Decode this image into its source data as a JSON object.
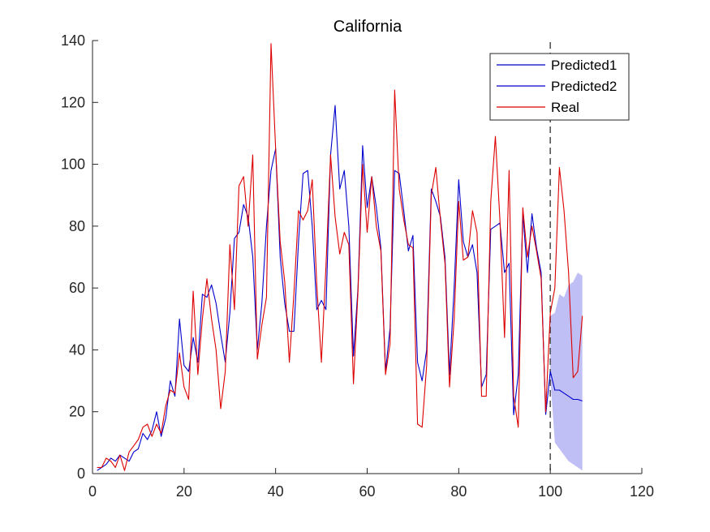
{
  "chart_data": {
    "type": "line",
    "title": "California",
    "xlabel": "",
    "ylabel": "",
    "xlim": [
      0,
      120
    ],
    "ylim": [
      0,
      140
    ],
    "xticks": [
      0,
      20,
      40,
      60,
      80,
      100,
      120
    ],
    "yticks": [
      0,
      20,
      40,
      60,
      80,
      100,
      120,
      140
    ],
    "grid": false,
    "legend": {
      "position": "top-right",
      "entries": [
        "Predicted1",
        "Predicted2",
        "Real"
      ]
    },
    "vertical_marker": {
      "x": 100,
      "style": "dashed"
    },
    "colors": {
      "predicted": "#0000cc",
      "real": "#dd0000",
      "band": "#b4b4f5"
    },
    "series": [
      {
        "name": "Predicted1",
        "color": "#0000cc",
        "x": [
          1,
          2,
          3,
          4,
          5,
          6,
          7,
          8,
          9,
          10,
          11,
          12,
          13,
          14,
          15,
          16,
          17,
          18,
          19,
          20,
          21,
          22,
          23,
          24,
          25,
          26,
          27,
          28,
          29,
          30,
          31,
          32,
          33,
          34,
          35,
          36,
          37,
          38,
          39,
          40,
          41,
          42,
          43,
          44,
          45,
          46,
          47,
          48,
          49,
          50,
          51,
          52,
          53,
          54,
          55,
          56,
          57,
          58,
          59,
          60,
          61,
          62,
          63,
          64,
          65,
          66,
          67,
          68,
          69,
          70,
          71,
          72,
          73,
          74,
          75,
          76,
          77,
          78,
          79,
          80,
          81,
          82,
          83,
          84,
          85,
          86,
          87,
          88,
          89,
          90,
          91,
          92,
          93,
          94,
          95,
          96,
          97,
          98,
          99
        ],
        "y": [
          1,
          2,
          3,
          5,
          4,
          6,
          5,
          4,
          7,
          8,
          13,
          11,
          14,
          20,
          12,
          18,
          30,
          25,
          50,
          35,
          33,
          44,
          36,
          58,
          57,
          61,
          55,
          45,
          36,
          52,
          76,
          78,
          87,
          83,
          70,
          40,
          55,
          80,
          98,
          105,
          70,
          55,
          46,
          46,
          75,
          97,
          98,
          80,
          53,
          56,
          53,
          103,
          119,
          92,
          98,
          80,
          38,
          60,
          106,
          86,
          96,
          86,
          73,
          33,
          47,
          98,
          97,
          85,
          72,
          77,
          36,
          30,
          40,
          92,
          88,
          83,
          70,
          32,
          60,
          95,
          75,
          70,
          74,
          65,
          28,
          32,
          79,
          80,
          81,
          65,
          68,
          19,
          32,
          84,
          65,
          84,
          73,
          65,
          19
        ]
      },
      {
        "name": "Predicted2",
        "color": "#0000cc",
        "x": [
          99,
          100,
          101,
          102,
          103,
          104,
          105,
          106,
          107
        ],
        "y": [
          19,
          33,
          27,
          27,
          26,
          25,
          24,
          24,
          23.5
        ]
      },
      {
        "name": "Real",
        "color": "#dd0000",
        "x": [
          1,
          2,
          3,
          4,
          5,
          6,
          7,
          8,
          9,
          10,
          11,
          12,
          13,
          14,
          15,
          16,
          17,
          18,
          19,
          20,
          21,
          22,
          23,
          24,
          25,
          26,
          27,
          28,
          29,
          30,
          31,
          32,
          33,
          34,
          35,
          36,
          37,
          38,
          39,
          40,
          41,
          42,
          43,
          44,
          45,
          46,
          47,
          48,
          49,
          50,
          51,
          52,
          53,
          54,
          55,
          56,
          57,
          58,
          59,
          60,
          61,
          62,
          63,
          64,
          65,
          66,
          67,
          68,
          69,
          70,
          71,
          72,
          73,
          74,
          75,
          76,
          77,
          78,
          79,
          80,
          81,
          82,
          83,
          84,
          85,
          86,
          87,
          88,
          89,
          90,
          91,
          92,
          93,
          94,
          95,
          96,
          97,
          98,
          99,
          100,
          101,
          102,
          103,
          104,
          105,
          106,
          107
        ],
        "y": [
          2,
          2,
          5,
          4,
          2,
          6,
          1,
          7,
          9,
          11,
          15,
          16,
          12,
          16,
          13,
          22,
          27,
          26,
          39,
          28,
          24,
          59,
          32,
          50,
          63,
          50,
          40,
          21,
          33,
          74,
          53,
          93,
          96,
          80,
          103,
          37,
          48,
          57,
          139,
          105,
          75,
          62,
          36,
          58,
          85,
          82,
          85,
          95,
          61,
          36,
          67,
          103,
          83,
          71,
          78,
          74,
          29,
          59,
          100,
          78,
          96,
          80,
          72,
          32,
          42,
          124,
          92,
          82,
          74,
          73,
          16,
          15,
          35,
          90,
          99,
          82,
          68,
          28,
          50,
          88,
          69,
          70,
          85,
          78,
          25,
          25,
          88,
          109,
          82,
          44,
          98,
          25,
          15,
          86,
          70,
          80,
          72,
          63,
          20,
          52,
          60,
          99,
          85,
          65,
          31,
          33,
          51
        ]
      }
    ],
    "band": {
      "name": "confidence-interval",
      "x": [
        100,
        101,
        102,
        103,
        104,
        105,
        106,
        107
      ],
      "upper": [
        51,
        52,
        58,
        57,
        61,
        62,
        65,
        64
      ],
      "lower": [
        31,
        10,
        8,
        6,
        4,
        3,
        2,
        1
      ]
    }
  }
}
